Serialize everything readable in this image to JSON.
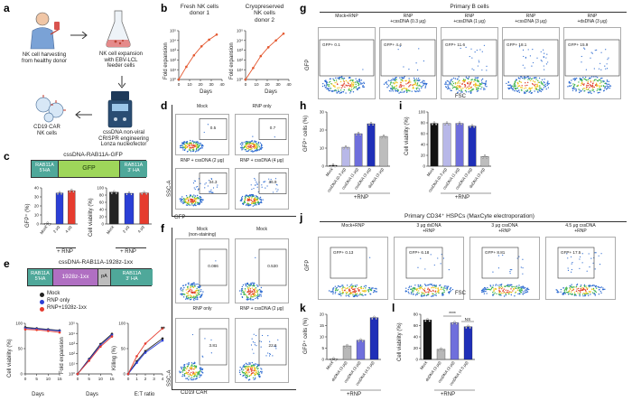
{
  "panel_labels": {
    "a": "a",
    "b": "b",
    "c": "c",
    "d": "d",
    "e": "e",
    "f": "f",
    "g": "g",
    "h": "h",
    "i": "i",
    "j": "j",
    "k": "k",
    "l": "l"
  },
  "a": {
    "step1": "NK cell harvesting\nfrom healthy donor",
    "step2": "NK cell expansion\nwith EBV-LCL\nfeeder cells",
    "step3": "cssDNA non-viral\nCRISPR engineering\nLonza nucleofector",
    "step4": "CD19 CAR\nNK cells"
  },
  "b": {
    "title1": "Fresh NK cells\ndonor 1",
    "title2": "Cryopreserved\nNK cells\ndonor 2",
    "ylabel": "Fold expansion",
    "xlabel": "Days",
    "yticks": [
      "10⁵",
      "10⁴",
      "10³",
      "10²",
      "10¹",
      "10⁰"
    ],
    "xticks1": [
      "0",
      "10",
      "20",
      "30",
      "40"
    ],
    "xticks2": [
      "0",
      "10",
      "20",
      "30",
      "40"
    ]
  },
  "c": {
    "construct_title": "cssDNA-RAB11A-GFP",
    "seg_5ha": "RAB11A\n5'HA",
    "seg_gfp": "GFP",
    "seg_3ha": "RAB11A\n3' HA",
    "ylabel1": "GFP⁺ (%)",
    "ylabel2": "Cell viability (%)",
    "xticks": [
      "Mock",
      "2 μg",
      "4 μg"
    ],
    "yticks1": [
      "40",
      "30",
      "20",
      "10",
      "0"
    ],
    "yticks2": [
      "100",
      "80",
      "60",
      "40",
      "20",
      "0"
    ],
    "group": "+ RNP"
  },
  "d": {
    "plots": [
      {
        "title": "Mock",
        "value": "0.5"
      },
      {
        "title": "RNP only",
        "value": "0.7"
      },
      {
        "title": "RNP + cssDNA (2 μg)",
        "value": "34.3"
      },
      {
        "title": "RNP + cssDNA (4 μg)",
        "value": "36.9"
      }
    ],
    "ylabel": "SSC-A",
    "xlabel": "GFP"
  },
  "e": {
    "construct_title": "cssDNA-RAB11A-1928z-1xx",
    "seg_5ha": "RAB11A\n5'HA",
    "seg_car": "1928z-1xx",
    "seg_pa": "pA",
    "seg_3ha": "RAB11A\n3' HA",
    "legend": [
      "Mock",
      "RNP only",
      "RNP+1928z-1xx"
    ],
    "ylabel1": "Cell viability (%)",
    "ylabel2": "Fold expansion",
    "ylabel3": "Killing (%)",
    "xlabel1": "Days",
    "xlabel2": "Days",
    "xlabel3": "E:T ratio",
    "sig": "**",
    "yticks1": [
      "100",
      "50",
      "0"
    ],
    "yticks2": [
      "10⁵",
      "10⁴",
      "10³",
      "10²",
      "10¹",
      "10⁰"
    ],
    "yticks3": [
      "100",
      "50",
      "0"
    ],
    "xticks1": [
      "0",
      "5",
      "10",
      "15"
    ],
    "xticks2": [
      "0",
      "5",
      "10",
      "15"
    ],
    "xticks3": [
      "0",
      "1",
      "2",
      "3",
      "4"
    ]
  },
  "f": {
    "plots": [
      {
        "title": "Mock\n(non-staining)",
        "value": "0.086"
      },
      {
        "title": "Mock",
        "value": "0.530"
      },
      {
        "title": "RNP only",
        "value": "3.81"
      },
      {
        "title": "RNP + cssDNA (2 μg)",
        "value": "22.6"
      }
    ],
    "ylabel": "SSC-A",
    "xlabel": "CD19 CAR"
  },
  "g": {
    "header": "Primary B cells",
    "plots": [
      {
        "title": "Mock+RNP",
        "value": "0.1"
      },
      {
        "title": "RNP\n+cssDNA (0.3 μg)",
        "value": "4.4"
      },
      {
        "title": "RNP\n+cssDNA (1 μg)",
        "value": "11.6"
      },
      {
        "title": "RNP\n+cssDNA (3 μg)",
        "value": "18.1"
      },
      {
        "title": "RNP\n+dsDNA (3 μg)",
        "value": "15.9"
      }
    ],
    "ylabel": "GFP",
    "xlabel": "FSC",
    "gate_label": "GFP+"
  },
  "h": {
    "ylabel": "GFP⁺ cells (%)",
    "yticks": [
      "30",
      "20",
      "10",
      "0"
    ],
    "categories": [
      "Mock",
      "cssDNA (0.3 μg)",
      "cssDNA (1 μg)",
      "cssDNA (3 μg)",
      "dsDNA (3 μg)"
    ],
    "group": "+RNP"
  },
  "i": {
    "ylabel": "Cell viability (%)",
    "yticks": [
      "100",
      "80",
      "60",
      "40",
      "20",
      "0"
    ],
    "categories": [
      "Mock",
      "cssDNA (0.3 μg)",
      "cssDNA (1 μg)",
      "cssDNA (3 μg)",
      "dsDNA (3 μg)"
    ],
    "group": "+RNP"
  },
  "j": {
    "header": "Primary CD34⁺ HSPCs (MaxCyte electroporation)",
    "plots": [
      {
        "title": "Mock+RNP",
        "value": "0.13"
      },
      {
        "title": "3 μg dsDNA\n+RNP",
        "value": "6.18"
      },
      {
        "title": "3 μg cssDNA\n+RNP",
        "value": "8.81"
      },
      {
        "title": "4.5 μg cssDNA\n+RNP",
        "value": "17.5"
      }
    ],
    "ylabel": "GFP",
    "xlabel": "FSC",
    "gate_label": "GFP+"
  },
  "k": {
    "ylabel": "GFP⁺ cells (%)",
    "yticks": [
      "20",
      "15",
      "10",
      "5",
      "0"
    ],
    "categories": [
      "Mock",
      "dsDNA (3 μg)",
      "cssDNA (3 μg)",
      "cssDNA (4.5 μg)"
    ],
    "group": "+RNP"
  },
  "l": {
    "ylabel": "Cell viability (%)",
    "yticks": [
      "80",
      "60",
      "40",
      "20",
      "0"
    ],
    "categories": [
      "Mock",
      "dsDNA (3 μg)",
      "cssDNA (3 μg)",
      "cssDNA (4.5 μg)"
    ],
    "sig1": "****",
    "sig2": "NS",
    "group": "+RNP"
  },
  "chart_data": [
    {
      "id": "b1",
      "type": "line",
      "title": "Fresh NK cells donor 1",
      "xlabel": "Days",
      "ylabel": "Fold expansion",
      "yscale": "log",
      "ylim": [
        1,
        100000
      ],
      "x": [
        0,
        7,
        14,
        21,
        28,
        35
      ],
      "series": [
        {
          "values": [
            1,
            20,
            300,
            2500,
            12000,
            40000
          ],
          "color": "#e4572e"
        }
      ]
    },
    {
      "id": "b2",
      "type": "line",
      "title": "Cryopreserved NK cells donor 2",
      "xlabel": "Days",
      "ylabel": "Fold expansion",
      "yscale": "log",
      "ylim": [
        1,
        100000
      ],
      "x": [
        0,
        7,
        14,
        21,
        28,
        35
      ],
      "series": [
        {
          "values": [
            1,
            15,
            250,
            2000,
            10000,
            50000
          ],
          "color": "#e4572e"
        }
      ]
    },
    {
      "id": "c1",
      "type": "bar",
      "ylabel": "GFP⁺ (%)",
      "ylim": [
        0,
        40
      ],
      "categories": [
        "Mock",
        "2 μg",
        "4 μg"
      ],
      "values": [
        0.5,
        34.3,
        36.9
      ],
      "colors": [
        "#222222",
        "#2b3fd6",
        "#e63b2e"
      ]
    },
    {
      "id": "c2",
      "type": "bar",
      "ylabel": "Cell viability (%)",
      "ylim": [
        0,
        100
      ],
      "categories": [
        "Mock",
        "2 μg",
        "4 μg"
      ],
      "values": [
        88,
        85,
        86
      ],
      "colors": [
        "#222222",
        "#2b3fd6",
        "#e63b2e"
      ]
    },
    {
      "id": "e1",
      "type": "line",
      "xlabel": "Days",
      "ylabel": "Cell viability (%)",
      "ylim": [
        0,
        100
      ],
      "x": [
        0,
        5,
        10,
        15
      ],
      "series": [
        {
          "name": "Mock",
          "values": [
            92,
            90,
            88,
            86
          ],
          "color": "#222222"
        },
        {
          "name": "RNP only",
          "values": [
            90,
            89,
            87,
            85
          ],
          "color": "#2b3fd6"
        },
        {
          "name": "RNP+1928z-1xx",
          "values": [
            88,
            87,
            85,
            82
          ],
          "color": "#e63b2e"
        }
      ]
    },
    {
      "id": "e2",
      "type": "line",
      "xlabel": "Days",
      "ylabel": "Fold expansion",
      "yscale": "log",
      "ylim": [
        1,
        100000
      ],
      "x": [
        0,
        5,
        10,
        15
      ],
      "series": [
        {
          "name": "Mock",
          "values": [
            1,
            30,
            900,
            9000
          ],
          "color": "#222222"
        },
        {
          "name": "RNP only",
          "values": [
            1,
            25,
            700,
            7000
          ],
          "color": "#2b3fd6"
        },
        {
          "name": "RNP+1928z-1xx",
          "values": [
            1,
            20,
            500,
            5000
          ],
          "color": "#e63b2e"
        }
      ]
    },
    {
      "id": "e3",
      "type": "line",
      "xlabel": "E:T ratio",
      "ylabel": "Killing (%)",
      "ylim": [
        0,
        100
      ],
      "x": [
        0,
        1,
        2,
        4
      ],
      "series": [
        {
          "name": "Mock",
          "values": [
            0,
            25,
            45,
            70
          ],
          "color": "#222222"
        },
        {
          "name": "RNP only",
          "values": [
            0,
            22,
            42,
            66
          ],
          "color": "#2b3fd6"
        },
        {
          "name": "RNP+1928z-1xx",
          "values": [
            0,
            35,
            60,
            90
          ],
          "color": "#e63b2e"
        }
      ]
    },
    {
      "id": "h",
      "type": "bar",
      "ylabel": "GFP⁺ cells (%)",
      "ylim": [
        0,
        30
      ],
      "categories": [
        "Mock",
        "cssDNA (0.3 μg)",
        "cssDNA (1 μg)",
        "cssDNA (3 μg)",
        "dsDNA (3 μg)"
      ],
      "values": [
        0.5,
        10.5,
        18,
        23.5,
        16.5
      ],
      "colors": [
        "#111111",
        "#b8b8e8",
        "#6f6fdc",
        "#1f2fb8",
        "#bdbdbd"
      ]
    },
    {
      "id": "i",
      "type": "bar",
      "ylabel": "Cell viability (%)",
      "ylim": [
        0,
        100
      ],
      "categories": [
        "Mock",
        "cssDNA (0.3 μg)",
        "cssDNA (1 μg)",
        "cssDNA (3 μg)",
        "dsDNA (3 μg)"
      ],
      "values": [
        79,
        79,
        79,
        74,
        18
      ],
      "colors": [
        "#111111",
        "#b8b8e8",
        "#6f6fdc",
        "#1f2fb8",
        "#bdbdbd"
      ]
    },
    {
      "id": "k",
      "type": "bar",
      "ylabel": "GFP⁺ cells (%)",
      "ylim": [
        0,
        20
      ],
      "categories": [
        "Mock",
        "dsDNA (3 μg)",
        "cssDNA (3 μg)",
        "cssDNA (4.5 μg)"
      ],
      "values": [
        0.2,
        6,
        8.5,
        18.5
      ],
      "colors": [
        "#111111",
        "#b8b8b8",
        "#6f6fdc",
        "#1f2fb8"
      ]
    },
    {
      "id": "l",
      "type": "bar",
      "ylabel": "Cell viability (%)",
      "ylim": [
        0,
        80
      ],
      "categories": [
        "Mock",
        "dsDNA (3 μg)",
        "cssDNA (3 μg)",
        "cssDNA (4.5 μg)"
      ],
      "values": [
        70,
        18,
        65,
        58
      ],
      "colors": [
        "#111111",
        "#b8b8b8",
        "#6f6fdc",
        "#1f2fb8"
      ]
    }
  ]
}
